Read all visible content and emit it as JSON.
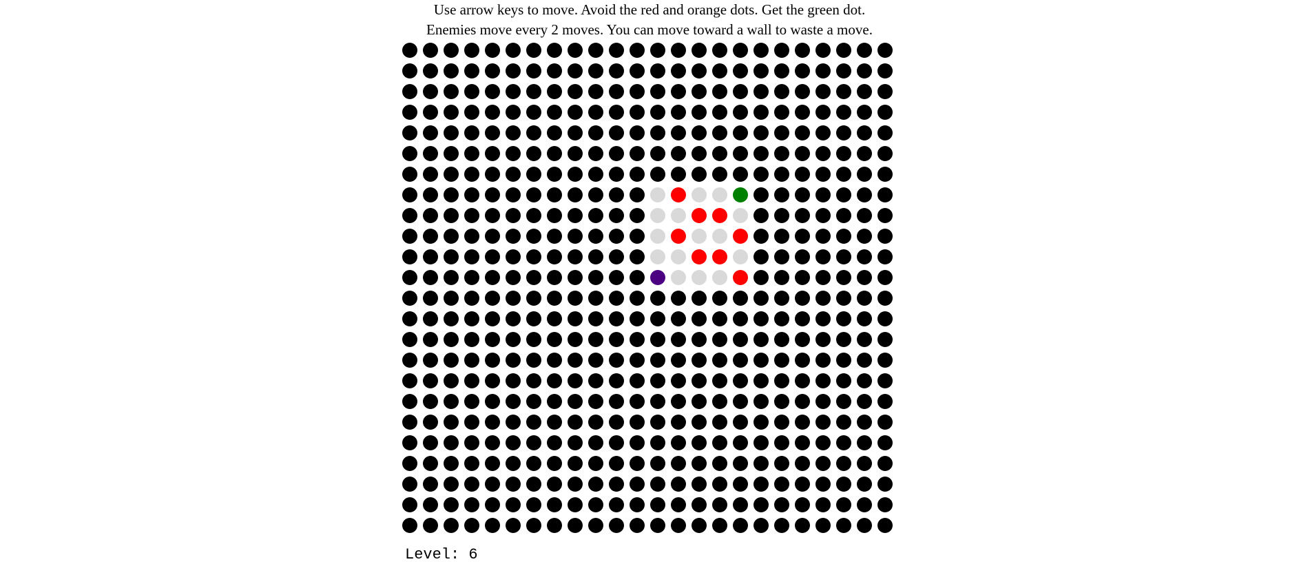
{
  "instructions": {
    "line1": "Use arrow keys to move. Avoid the red and orange dots. Get the green dot.",
    "line2": "Enemies move every 2 moves. You can move toward a wall to waste a move."
  },
  "level": {
    "label": "Level: 6"
  },
  "board": {
    "rows": 24,
    "cols": 24,
    "colors": {
      "wall": "#000000",
      "floor": "#d9d9d9",
      "player": "#4b0082",
      "goal": "#008000",
      "enemy": "#ff0000"
    },
    "floor_cells": [
      [
        7,
        12
      ],
      [
        7,
        14
      ],
      [
        7,
        15
      ],
      [
        8,
        12
      ],
      [
        8,
        13
      ],
      [
        8,
        16
      ],
      [
        9,
        12
      ],
      [
        9,
        14
      ],
      [
        9,
        15
      ],
      [
        10,
        12
      ],
      [
        10,
        13
      ],
      [
        10,
        16
      ],
      [
        11,
        13
      ],
      [
        11,
        14
      ],
      [
        11,
        15
      ]
    ],
    "player": [
      11,
      12
    ],
    "goal": [
      7,
      16
    ],
    "enemies": [
      [
        7,
        13
      ],
      [
        8,
        14
      ],
      [
        8,
        15
      ],
      [
        9,
        13
      ],
      [
        9,
        16
      ],
      [
        10,
        14
      ],
      [
        10,
        15
      ],
      [
        11,
        16
      ]
    ]
  }
}
